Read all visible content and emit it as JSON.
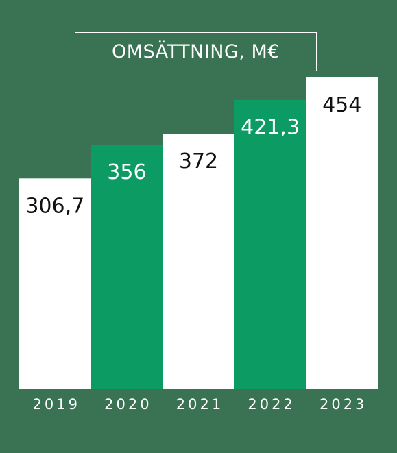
{
  "chart_data": {
    "type": "bar",
    "title": "OMSÄTTNING, M€",
    "categories": [
      "2019",
      "2020",
      "2021",
      "2022",
      "2023"
    ],
    "values": [
      306.7,
      356,
      372,
      421.3,
      454
    ],
    "value_labels": [
      "306,7",
      "356",
      "372",
      "421,3",
      "454"
    ],
    "bar_colors": [
      "#ffffff",
      "#0c9b63",
      "#ffffff",
      "#0c9b63",
      "#ffffff"
    ],
    "label_colors": [
      "#111111",
      "#ffffff",
      "#111111",
      "#ffffff",
      "#111111"
    ],
    "background_color": "#3a7353",
    "xlabel": "",
    "ylabel": "",
    "ylim": [
      0,
      454
    ],
    "grid": false,
    "legend": "none"
  }
}
